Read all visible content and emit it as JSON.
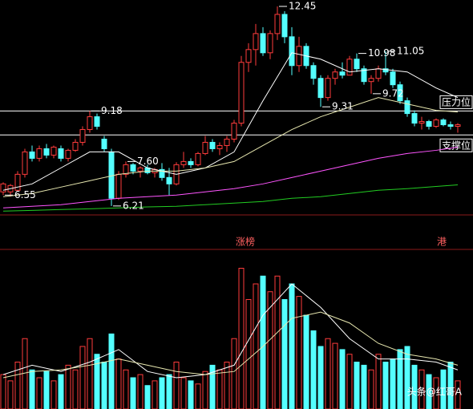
{
  "chart_data": {
    "type": "candlestick",
    "ylim": [
      5.93,
      12.65
    ],
    "up_color": "#ff3c3c",
    "down_color": "#54ffff",
    "ohlc": [
      [
        6.65,
        6.95,
        6.55,
        6.9
      ],
      [
        6.65,
        6.9,
        6.5,
        6.85
      ],
      [
        6.7,
        7.3,
        6.65,
        7.2
      ],
      [
        7.2,
        8.0,
        7.1,
        7.9
      ],
      [
        7.9,
        8.1,
        7.6,
        7.7
      ],
      [
        7.7,
        8.1,
        7.6,
        8.0
      ],
      [
        8.0,
        8.15,
        7.7,
        7.8
      ],
      [
        7.8,
        8.1,
        7.7,
        8.05
      ],
      [
        8.0,
        8.1,
        7.6,
        7.7
      ],
      [
        7.7,
        8.0,
        7.6,
        7.95
      ],
      [
        7.95,
        8.3,
        7.9,
        8.2
      ],
      [
        8.2,
        8.7,
        8.1,
        8.6
      ],
      [
        8.6,
        9.18,
        8.5,
        9.0
      ],
      [
        9.0,
        9.1,
        8.6,
        8.7
      ],
      [
        8.3,
        8.4,
        7.9,
        8.0
      ],
      [
        7.9,
        8.0,
        6.21,
        6.45
      ],
      [
        6.45,
        7.3,
        6.4,
        7.2
      ],
      [
        7.2,
        7.6,
        7.1,
        7.5
      ],
      [
        7.5,
        7.55,
        7.2,
        7.3
      ],
      [
        7.3,
        7.45,
        7.1,
        7.4
      ],
      [
        7.4,
        7.5,
        7.2,
        7.25
      ],
      [
        7.25,
        7.4,
        7.1,
        7.35
      ],
      [
        7.35,
        7.55,
        7.0,
        7.1
      ],
      [
        7.1,
        7.4,
        6.55,
        6.9
      ],
      [
        6.9,
        7.58,
        6.85,
        7.5
      ],
      [
        7.5,
        7.9,
        7.4,
        7.6
      ],
      [
        7.6,
        7.7,
        7.4,
        7.5
      ],
      [
        7.5,
        7.9,
        7.45,
        7.85
      ],
      [
        7.85,
        8.4,
        7.8,
        8.2
      ],
      [
        8.2,
        8.3,
        7.9,
        8.0
      ],
      [
        8.0,
        8.2,
        7.8,
        8.1
      ],
      [
        8.1,
        8.4,
        7.9,
        8.3
      ],
      [
        8.3,
        8.9,
        8.2,
        8.8
      ],
      [
        8.8,
        10.9,
        8.7,
        10.7
      ],
      [
        10.7,
        11.3,
        10.4,
        11.1
      ],
      [
        11.1,
        11.9,
        10.6,
        11.6
      ],
      [
        11.6,
        11.8,
        10.9,
        11.0
      ],
      [
        11.0,
        11.7,
        10.8,
        11.6
      ],
      [
        11.6,
        12.45,
        11.4,
        12.2
      ],
      [
        12.2,
        12.3,
        11.3,
        11.5
      ],
      [
        11.5,
        11.8,
        10.3,
        10.6
      ],
      [
        10.6,
        11.5,
        10.4,
        11.2
      ],
      [
        11.2,
        11.3,
        10.5,
        10.6
      ],
      [
        10.6,
        10.7,
        10.0,
        10.2
      ],
      [
        10.2,
        10.3,
        9.31,
        9.6
      ],
      [
        9.6,
        10.3,
        9.5,
        10.2
      ],
      [
        10.2,
        10.5,
        10.0,
        10.4
      ],
      [
        10.4,
        10.7,
        10.2,
        10.3
      ],
      [
        10.3,
        10.9,
        10.3,
        10.8
      ],
      [
        10.8,
        10.98,
        10.4,
        10.5
      ],
      [
        10.5,
        10.6,
        10.0,
        10.1
      ],
      [
        10.1,
        10.3,
        9.72,
        10.2
      ],
      [
        10.2,
        10.6,
        10.1,
        10.5
      ],
      [
        10.5,
        11.05,
        10.3,
        10.4
      ],
      [
        10.4,
        10.5,
        9.9,
        10.0
      ],
      [
        10.0,
        10.1,
        9.4,
        9.5
      ],
      [
        9.5,
        9.6,
        9.0,
        9.1
      ],
      [
        9.1,
        9.2,
        8.7,
        8.8
      ],
      [
        8.8,
        9.0,
        8.6,
        8.85
      ],
      [
        8.85,
        8.9,
        8.6,
        8.7
      ],
      [
        8.7,
        8.95,
        8.65,
        8.9
      ],
      [
        8.9,
        8.95,
        8.7,
        8.75
      ],
      [
        8.75,
        8.85,
        8.6,
        8.7
      ],
      [
        8.7,
        8.8,
        8.5,
        8.75
      ]
    ],
    "extremes": [
      12.45,
      10.98,
      11.05,
      9.18,
      9.31,
      9.72,
      {
        "value": 7.6,
        "label": "7.60"
      },
      6.55,
      6.21
    ],
    "ma_x": [
      0,
      4,
      8,
      12,
      16,
      20,
      24,
      28,
      32,
      36,
      40,
      44,
      48,
      52,
      56,
      60,
      63
    ],
    "ma": [
      {
        "color": "#ffffff",
        "values": [
          6.7,
          6.9,
          7.4,
          7.9,
          7.9,
          7.4,
          7.2,
          7.4,
          7.9,
          9.5,
          11.0,
          10.8,
          10.4,
          10.5,
          10.4,
          9.9,
          9.6
        ]
      },
      {
        "color": "#e8e8b0",
        "values": [
          6.5,
          6.6,
          6.8,
          7.0,
          7.2,
          7.3,
          7.3,
          7.4,
          7.6,
          8.1,
          8.6,
          9.0,
          9.3,
          9.6,
          9.4,
          9.2,
          9.15
        ]
      },
      {
        "color": "#ff55ff",
        "values": [
          6.15,
          6.2,
          6.25,
          6.35,
          6.45,
          6.5,
          6.55,
          6.65,
          6.75,
          6.9,
          7.1,
          7.3,
          7.5,
          7.7,
          7.85,
          7.95,
          8.05
        ]
      },
      {
        "color": "#22cc22",
        "values": [
          6.05,
          6.07,
          6.1,
          6.12,
          6.15,
          6.18,
          6.2,
          6.25,
          6.3,
          6.35,
          6.45,
          6.5,
          6.6,
          6.7,
          6.75,
          6.82,
          6.87
        ]
      }
    ],
    "levels": [
      {
        "label": "压力位",
        "value": 9.18
      },
      {
        "label": "支撑位",
        "value": 8.43
      }
    ],
    "volume_ylim": [
      0,
      100
    ],
    "volume": [
      22,
      18,
      30,
      45,
      25,
      20,
      24,
      18,
      22,
      28,
      25,
      40,
      45,
      35,
      30,
      48,
      32,
      25,
      20,
      22,
      15,
      18,
      20,
      22,
      30,
      20,
      18,
      16,
      24,
      28,
      25,
      30,
      45,
      90,
      70,
      80,
      85,
      75,
      85,
      70,
      80,
      72,
      60,
      50,
      40,
      45,
      42,
      38,
      35,
      30,
      28,
      25,
      35,
      30,
      32,
      38,
      40,
      28,
      25,
      22,
      20,
      25,
      30,
      18
    ],
    "volume_ma": [
      {
        "color": "#ffffff",
        "values": [
          22,
          28,
          24,
          30,
          38,
          24,
          20,
          22,
          28,
          60,
          80,
          65,
          45,
          32,
          32,
          30,
          25
        ]
      },
      {
        "color": "#e8e8b0",
        "values": [
          20,
          24,
          25,
          28,
          32,
          28,
          24,
          22,
          24,
          40,
          58,
          62,
          55,
          42,
          35,
          32,
          28
        ]
      }
    ],
    "event_labels": [
      "涨榜",
      "港"
    ],
    "watermark": "头条@红哥A"
  }
}
